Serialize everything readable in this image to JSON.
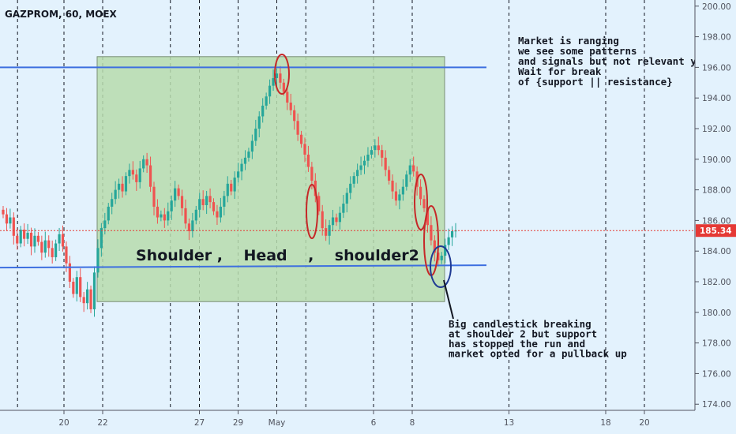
{
  "chart_data": {
    "type": "candlestick",
    "title": "GAZPROM, 60, MOEX",
    "ylim": [
      173.6,
      200.4
    ],
    "yticks": [
      "200.00",
      "198.00",
      "196.00",
      "194.00",
      "192.00",
      "190.00",
      "188.00",
      "186.00",
      "184.00",
      "182.00",
      "180.00",
      "178.00",
      "176.00",
      "174.00"
    ],
    "ytick_values": [
      200,
      198,
      196,
      194,
      192,
      190,
      188,
      186,
      184,
      182,
      180,
      178,
      176,
      174
    ],
    "xticks": [
      {
        "label": "20",
        "day": 20
      },
      {
        "label": "22",
        "day": 22
      },
      {
        "label": "27",
        "day": 27
      },
      {
        "label": "29",
        "day": 29
      },
      {
        "label": "May",
        "day": 31
      },
      {
        "label": "6",
        "day": 36
      },
      {
        "label": "8",
        "day": 38
      },
      {
        "label": "13",
        "day": 43
      },
      {
        "label": "18",
        "day": 48
      },
      {
        "label": "20",
        "day": 50
      }
    ],
    "last_price": 185.34,
    "last_price_label": "185.34",
    "resistance": 196.0,
    "support": 183.0,
    "range_box": {
      "y_top": 196.7,
      "y_bottom": 180.7
    },
    "pattern_label": "Shoulder ,    Head    ,    shoulder2",
    "note_top": [
      "Market is ranging",
      "we see some patterns",
      "and signals but not relevant yet",
      "Wait for break",
      "of {support || resistance}"
    ],
    "note_bottom": [
      "Big candlestick breaking",
      "at shoulder 2 but support",
      "has stopped the run and",
      "market opted for a pullback up"
    ],
    "closes": [
      186.4,
      185.8,
      186.2,
      185.0,
      184.5,
      185.4,
      184.8,
      185.2,
      184.3,
      185.0,
      184.6,
      183.9,
      184.7,
      184.2,
      183.6,
      184.5,
      185.1,
      184.3,
      183.2,
      182.0,
      181.2,
      182.3,
      181.0,
      180.6,
      181.5,
      180.2,
      182.6,
      184.2,
      185.5,
      186.0,
      186.9,
      187.4,
      188.0,
      188.4,
      187.9,
      188.9,
      189.3,
      189.0,
      188.5,
      189.4,
      190.0,
      189.6,
      188.2,
      186.9,
      186.2,
      186.4,
      186.0,
      186.6,
      187.3,
      188.1,
      187.6,
      186.8,
      185.8,
      185.3,
      186.0,
      186.7,
      187.4,
      187.0,
      187.6,
      187.2,
      186.6,
      186.2,
      186.9,
      187.6,
      188.4,
      187.9,
      188.8,
      189.2,
      189.7,
      190.1,
      190.5,
      191.2,
      192.0,
      192.8,
      193.5,
      194.1,
      194.8,
      195.3,
      195.6,
      195.0,
      194.4,
      193.7,
      193.2,
      192.5,
      191.6,
      191.0,
      190.3,
      189.5,
      188.6,
      187.6,
      186.6,
      185.5,
      185.0,
      185.7,
      186.2,
      185.9,
      186.5,
      187.1,
      187.8,
      188.4,
      188.9,
      189.3,
      189.6,
      189.9,
      190.3,
      190.6,
      190.9,
      190.6,
      190.1,
      189.3,
      188.6,
      187.9,
      187.3,
      187.7,
      188.2,
      189.0,
      189.6,
      189.2,
      188.2,
      187.4,
      186.8,
      185.7,
      184.7,
      183.9,
      183.4,
      183.7,
      184.4,
      184.9,
      185.3,
      185.34
    ]
  }
}
